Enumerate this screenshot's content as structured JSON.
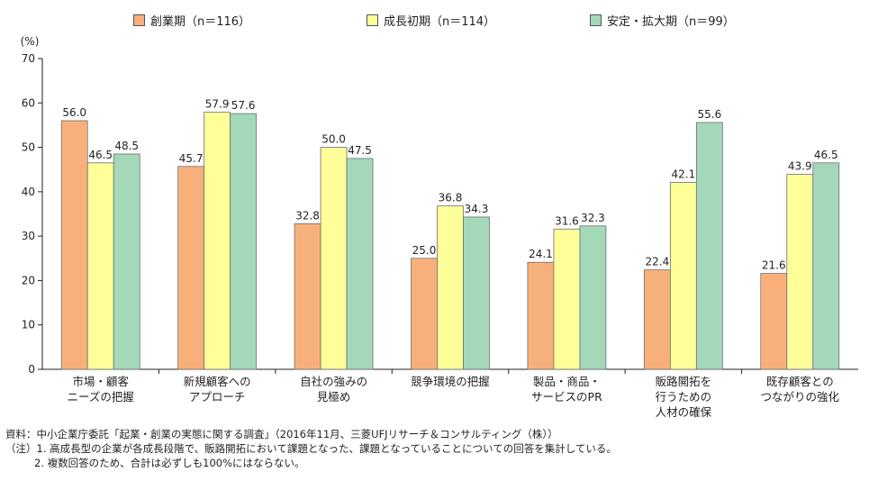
{
  "legend": [
    {
      "label": "創業期（n＝116）",
      "color": "#f8b07a"
    },
    {
      "label": "成長初期（n＝114）",
      "color": "#ffff99"
    },
    {
      "label": "安定・拡大期（n＝99）",
      "color": "#a3d9b8"
    }
  ],
  "chart_data": {
    "type": "bar",
    "ylabel": "(%)",
    "ylim": [
      0,
      70
    ],
    "yticks": [
      0,
      10,
      20,
      30,
      40,
      50,
      60,
      70
    ],
    "categories": [
      [
        "市場・顧客",
        "ニーズの把握"
      ],
      [
        "新規顧客への",
        "アプローチ"
      ],
      [
        "自社の強みの",
        "見極め"
      ],
      [
        "競争環境の把握"
      ],
      [
        "製品・商品・",
        "サービスのPR"
      ],
      [
        "販路開拓を",
        "行うための",
        "人材の確保"
      ],
      [
        "既存顧客との",
        "つながりの強化"
      ]
    ],
    "series": [
      {
        "name": "創業期（n＝116）",
        "color": "#f8b07a",
        "values": [
          56.0,
          45.7,
          32.8,
          25.0,
          24.1,
          22.4,
          21.6
        ]
      },
      {
        "name": "成長初期（n＝114）",
        "color": "#ffff99",
        "values": [
          46.5,
          57.9,
          50.0,
          36.8,
          31.6,
          42.1,
          43.9
        ]
      },
      {
        "name": "安定・拡大期（n＝99）",
        "color": "#a3d9b8",
        "values": [
          48.5,
          57.6,
          47.5,
          34.3,
          32.3,
          55.6,
          46.5
        ]
      }
    ]
  },
  "notes": {
    "source": "資料：中小企業庁委託「起業・創業の実態に関する調査」（2016年11月、三菱UFJリサーチ＆コンサルティング（株））",
    "note1": "（注）1. 高成長型の企業が各成長段階で、販路開拓において課題となった、課題となっていることについての回答を集計している。",
    "note2": "2. 複数回答のため、合計は必ずしも100%にはならない。"
  }
}
